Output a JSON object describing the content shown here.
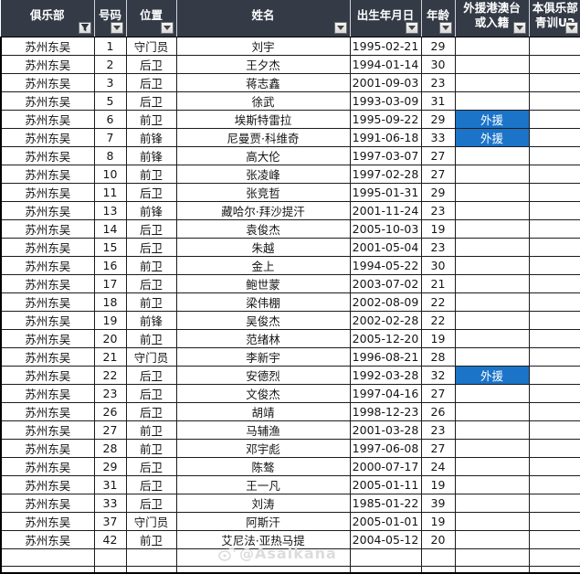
{
  "colors": {
    "header_bg": "#343B47",
    "accent_blue": "#1B74C8",
    "grid_line": "#1c1c1c",
    "header_text": "#ffffff",
    "filter_btn_bg": "#e8e8e8"
  },
  "header": {
    "columns": [
      {
        "lines": [
          "俱乐部"
        ],
        "filter": "funnel"
      },
      {
        "lines": [
          "号码"
        ],
        "filter": "arrow"
      },
      {
        "lines": [
          "位置"
        ],
        "filter": "arrow"
      },
      {
        "lines": [
          "姓名"
        ],
        "filter": "arrow"
      },
      {
        "lines": [
          "出生年月日"
        ],
        "filter": "arrow"
      },
      {
        "lines": [
          "年龄"
        ],
        "filter": "arrow"
      },
      {
        "lines": [
          "外援港澳台",
          "或入籍"
        ],
        "filter": "arrow"
      },
      {
        "lines": [
          "本俱乐部",
          "青训U2"
        ],
        "filter": "arrow"
      }
    ]
  },
  "rows": [
    {
      "club": "苏州东吴",
      "number": "1",
      "position": "守门员",
      "name": "刘宇",
      "birth": "1995-02-21",
      "age": "29",
      "foreign": "",
      "youth": ""
    },
    {
      "club": "苏州东吴",
      "number": "2",
      "position": "后卫",
      "name": "王夕杰",
      "birth": "1994-01-14",
      "age": "30",
      "foreign": "",
      "youth": ""
    },
    {
      "club": "苏州东吴",
      "number": "3",
      "position": "后卫",
      "name": "蒋志鑫",
      "birth": "2001-09-03",
      "age": "23",
      "foreign": "",
      "youth": ""
    },
    {
      "club": "苏州东吴",
      "number": "5",
      "position": "后卫",
      "name": "徐武",
      "birth": "1993-03-09",
      "age": "31",
      "foreign": "",
      "youth": ""
    },
    {
      "club": "苏州东吴",
      "number": "6",
      "position": "前卫",
      "name": "埃斯特雷拉",
      "birth": "1995-09-22",
      "age": "29",
      "foreign": "外援",
      "youth": ""
    },
    {
      "club": "苏州东吴",
      "number": "7",
      "position": "前锋",
      "name": "尼曼贾·科维奇",
      "birth": "1991-06-18",
      "age": "33",
      "foreign": "外援",
      "youth": ""
    },
    {
      "club": "苏州东吴",
      "number": "8",
      "position": "前锋",
      "name": "高大伦",
      "birth": "1997-03-07",
      "age": "27",
      "foreign": "",
      "youth": ""
    },
    {
      "club": "苏州东吴",
      "number": "10",
      "position": "前卫",
      "name": "张凌峰",
      "birth": "1997-02-28",
      "age": "27",
      "foreign": "",
      "youth": ""
    },
    {
      "club": "苏州东吴",
      "number": "11",
      "position": "后卫",
      "name": "张竞哲",
      "birth": "1995-01-31",
      "age": "29",
      "foreign": "",
      "youth": ""
    },
    {
      "club": "苏州东吴",
      "number": "13",
      "position": "前锋",
      "name": "藏哈尔·拜沙提汗",
      "birth": "2001-11-24",
      "age": "23",
      "foreign": "",
      "youth": ""
    },
    {
      "club": "苏州东吴",
      "number": "14",
      "position": "后卫",
      "name": "袁俊杰",
      "birth": "2005-10-03",
      "age": "19",
      "foreign": "",
      "youth": ""
    },
    {
      "club": "苏州东吴",
      "number": "15",
      "position": "后卫",
      "name": "朱越",
      "birth": "2001-05-04",
      "age": "23",
      "foreign": "",
      "youth": ""
    },
    {
      "club": "苏州东吴",
      "number": "16",
      "position": "前卫",
      "name": "金上",
      "birth": "1994-05-22",
      "age": "30",
      "foreign": "",
      "youth": ""
    },
    {
      "club": "苏州东吴",
      "number": "17",
      "position": "后卫",
      "name": "鲍世蒙",
      "birth": "2003-07-02",
      "age": "21",
      "foreign": "",
      "youth": ""
    },
    {
      "club": "苏州东吴",
      "number": "18",
      "position": "前卫",
      "name": "梁伟棚",
      "birth": "2002-08-09",
      "age": "22",
      "foreign": "",
      "youth": ""
    },
    {
      "club": "苏州东吴",
      "number": "19",
      "position": "前锋",
      "name": "吴俊杰",
      "birth": "2002-02-28",
      "age": "22",
      "foreign": "",
      "youth": ""
    },
    {
      "club": "苏州东吴",
      "number": "20",
      "position": "前卫",
      "name": "范绪林",
      "birth": "2005-12-20",
      "age": "19",
      "foreign": "",
      "youth": ""
    },
    {
      "club": "苏州东吴",
      "number": "21",
      "position": "守门员",
      "name": "李新宇",
      "birth": "1996-08-21",
      "age": "28",
      "foreign": "",
      "youth": ""
    },
    {
      "club": "苏州东吴",
      "number": "22",
      "position": "后卫",
      "name": "安德烈",
      "birth": "1992-03-28",
      "age": "32",
      "foreign": "外援",
      "youth": ""
    },
    {
      "club": "苏州东吴",
      "number": "23",
      "position": "后卫",
      "name": "文俊杰",
      "birth": "1997-04-16",
      "age": "27",
      "foreign": "",
      "youth": ""
    },
    {
      "club": "苏州东吴",
      "number": "26",
      "position": "后卫",
      "name": "胡靖",
      "birth": "1998-12-23",
      "age": "26",
      "foreign": "",
      "youth": ""
    },
    {
      "club": "苏州东吴",
      "number": "27",
      "position": "前卫",
      "name": "马辅渔",
      "birth": "2001-03-28",
      "age": "23",
      "foreign": "",
      "youth": ""
    },
    {
      "club": "苏州东吴",
      "number": "28",
      "position": "前卫",
      "name": "邓宇彪",
      "birth": "1997-06-08",
      "age": "27",
      "foreign": "",
      "youth": ""
    },
    {
      "club": "苏州东吴",
      "number": "29",
      "position": "后卫",
      "name": "陈骜",
      "birth": "2000-07-17",
      "age": "24",
      "foreign": "",
      "youth": ""
    },
    {
      "club": "苏州东吴",
      "number": "31",
      "position": "后卫",
      "name": "王一凡",
      "birth": "2005-01-11",
      "age": "19",
      "foreign": "",
      "youth": ""
    },
    {
      "club": "苏州东吴",
      "number": "33",
      "position": "后卫",
      "name": "刘涛",
      "birth": "1985-01-22",
      "age": "39",
      "foreign": "",
      "youth": ""
    },
    {
      "club": "苏州东吴",
      "number": "37",
      "position": "守门员",
      "name": "阿斯汗",
      "birth": "2005-01-01",
      "age": "19",
      "foreign": "",
      "youth": ""
    },
    {
      "club": "苏州东吴",
      "number": "42",
      "position": "前卫",
      "name": "艾尼法·亚热马提",
      "birth": "2004-05-12",
      "age": "20",
      "foreign": "",
      "youth": ""
    }
  ],
  "empty_row_count": 3,
  "watermark": {
    "text": "@Asaikana"
  }
}
